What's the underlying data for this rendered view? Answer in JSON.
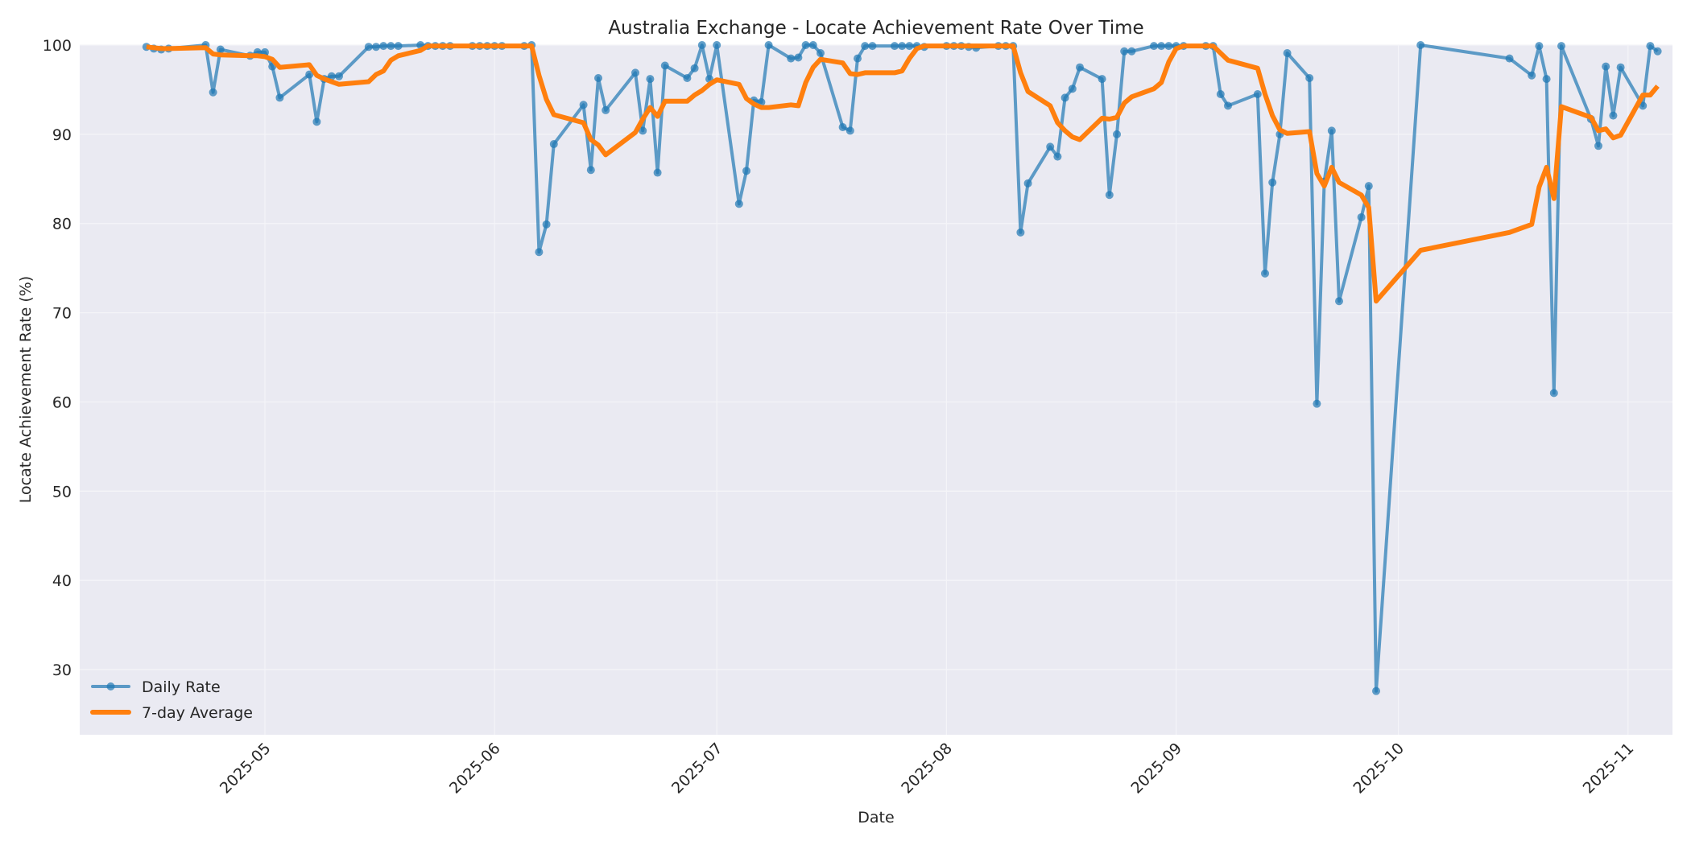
{
  "chart_data": {
    "type": "line",
    "title": "Australia Exchange - Locate Achievement Rate Over Time",
    "xlabel": "Date",
    "ylabel": "Locate Achievement Rate (%)",
    "ylim": [
      22.7,
      100
    ],
    "xlim": [
      "2025-04-06",
      "2025-11-07"
    ],
    "grid": true,
    "legend_position": "lower left",
    "yticks": [
      30,
      40,
      50,
      60,
      70,
      80,
      90,
      100
    ],
    "xticks": [
      "2025-05",
      "2025-06",
      "2025-07",
      "2025-08",
      "2025-09",
      "2025-10",
      "2025-11"
    ],
    "xtick_dates": [
      "2025-05-01",
      "2025-06-01",
      "2025-07-01",
      "2025-08-01",
      "2025-09-01",
      "2025-10-01",
      "2025-11-01"
    ],
    "series": [
      {
        "name": "Daily Rate",
        "color": "#1f77b4",
        "style": "line-marker",
        "points": [
          [
            "2025-04-15",
            99.8
          ],
          [
            "2025-04-16",
            99.6
          ],
          [
            "2025-04-17",
            99.5
          ],
          [
            "2025-04-18",
            99.6
          ],
          [
            "2025-04-23",
            100
          ],
          [
            "2025-04-24",
            94.7
          ],
          [
            "2025-04-25",
            99.5
          ],
          [
            "2025-04-29",
            98.8
          ],
          [
            "2025-04-30",
            99.2
          ],
          [
            "2025-05-01",
            99.2
          ],
          [
            "2025-05-02",
            97.6
          ],
          [
            "2025-05-03",
            94.1
          ],
          [
            "2025-05-07",
            96.7
          ],
          [
            "2025-05-08",
            91.4
          ],
          [
            "2025-05-09",
            96.2
          ],
          [
            "2025-05-10",
            96.5
          ],
          [
            "2025-05-11",
            96.5
          ],
          [
            "2025-05-15",
            99.8
          ],
          [
            "2025-05-16",
            99.8
          ],
          [
            "2025-05-17",
            99.9
          ],
          [
            "2025-05-18",
            99.9
          ],
          [
            "2025-05-19",
            99.9
          ],
          [
            "2025-05-22",
            100
          ],
          [
            "2025-05-23",
            99.9
          ],
          [
            "2025-05-24",
            99.9
          ],
          [
            "2025-05-25",
            99.9
          ],
          [
            "2025-05-26",
            99.9
          ],
          [
            "2025-05-29",
            99.9
          ],
          [
            "2025-05-30",
            99.9
          ],
          [
            "2025-05-31",
            99.9
          ],
          [
            "2025-06-01",
            99.9
          ],
          [
            "2025-06-02",
            99.9
          ],
          [
            "2025-06-05",
            99.9
          ],
          [
            "2025-06-06",
            100
          ],
          [
            "2025-06-07",
            76.8
          ],
          [
            "2025-06-08",
            79.9
          ],
          [
            "2025-06-09",
            88.9
          ],
          [
            "2025-06-13",
            93.3
          ],
          [
            "2025-06-14",
            86.0
          ],
          [
            "2025-06-15",
            96.3
          ],
          [
            "2025-06-16",
            92.7
          ],
          [
            "2025-06-20",
            96.9
          ],
          [
            "2025-06-21",
            90.4
          ],
          [
            "2025-06-22",
            96.2
          ],
          [
            "2025-06-23",
            85.7
          ],
          [
            "2025-06-24",
            97.7
          ],
          [
            "2025-06-27",
            96.3
          ],
          [
            "2025-06-28",
            97.4
          ],
          [
            "2025-06-29",
            100
          ],
          [
            "2025-06-30",
            96.2
          ],
          [
            "2025-07-01",
            100
          ],
          [
            "2025-07-04",
            82.2
          ],
          [
            "2025-07-05",
            85.9
          ],
          [
            "2025-07-06",
            93.8
          ],
          [
            "2025-07-07",
            93.6
          ],
          [
            "2025-07-08",
            100
          ],
          [
            "2025-07-11",
            98.5
          ],
          [
            "2025-07-12",
            98.6
          ],
          [
            "2025-07-13",
            100
          ],
          [
            "2025-07-14",
            100
          ],
          [
            "2025-07-15",
            99.1
          ],
          [
            "2025-07-18",
            90.8
          ],
          [
            "2025-07-19",
            90.4
          ],
          [
            "2025-07-20",
            98.5
          ],
          [
            "2025-07-21",
            99.9
          ],
          [
            "2025-07-22",
            99.9
          ],
          [
            "2025-07-25",
            99.9
          ],
          [
            "2025-07-26",
            99.9
          ],
          [
            "2025-07-27",
            99.9
          ],
          [
            "2025-07-28",
            99.9
          ],
          [
            "2025-07-29",
            99.8
          ],
          [
            "2025-08-01",
            99.9
          ],
          [
            "2025-08-02",
            99.9
          ],
          [
            "2025-08-03",
            99.9
          ],
          [
            "2025-08-04",
            99.8
          ],
          [
            "2025-08-05",
            99.7
          ],
          [
            "2025-08-08",
            99.9
          ],
          [
            "2025-08-09",
            99.9
          ],
          [
            "2025-08-10",
            99.9
          ],
          [
            "2025-08-11",
            79.0
          ],
          [
            "2025-08-12",
            84.5
          ],
          [
            "2025-08-15",
            88.6
          ],
          [
            "2025-08-16",
            87.5
          ],
          [
            "2025-08-17",
            94.1
          ],
          [
            "2025-08-18",
            95.1
          ],
          [
            "2025-08-19",
            97.5
          ],
          [
            "2025-08-22",
            96.2
          ],
          [
            "2025-08-23",
            83.2
          ],
          [
            "2025-08-24",
            90.0
          ],
          [
            "2025-08-25",
            99.3
          ],
          [
            "2025-08-26",
            99.3
          ],
          [
            "2025-08-29",
            99.9
          ],
          [
            "2025-08-30",
            99.9
          ],
          [
            "2025-08-31",
            99.9
          ],
          [
            "2025-09-01",
            99.9
          ],
          [
            "2025-09-02",
            99.9
          ],
          [
            "2025-09-05",
            99.9
          ],
          [
            "2025-09-06",
            99.9
          ],
          [
            "2025-09-07",
            94.5
          ],
          [
            "2025-09-08",
            93.2
          ],
          [
            "2025-09-12",
            94.5
          ],
          [
            "2025-09-13",
            74.4
          ],
          [
            "2025-09-14",
            84.6
          ],
          [
            "2025-09-15",
            90.0
          ],
          [
            "2025-09-16",
            99.1
          ],
          [
            "2025-09-19",
            96.3
          ],
          [
            "2025-09-20",
            59.8
          ],
          [
            "2025-09-21",
            84.7
          ],
          [
            "2025-09-22",
            90.4
          ],
          [
            "2025-09-23",
            71.3
          ],
          [
            "2025-09-26",
            80.7
          ],
          [
            "2025-09-27",
            84.2
          ],
          [
            "2025-09-28",
            27.6
          ],
          [
            "2025-10-04",
            100
          ],
          [
            "2025-10-16",
            98.5
          ],
          [
            "2025-10-19",
            96.6
          ],
          [
            "2025-10-20",
            99.9
          ],
          [
            "2025-10-21",
            96.2
          ],
          [
            "2025-10-22",
            61.0
          ],
          [
            "2025-10-23",
            99.9
          ],
          [
            "2025-10-27",
            91.7
          ],
          [
            "2025-10-28",
            88.7
          ],
          [
            "2025-10-29",
            97.6
          ],
          [
            "2025-10-30",
            92.1
          ],
          [
            "2025-10-31",
            97.5
          ],
          [
            "2025-11-03",
            93.2
          ],
          [
            "2025-11-04",
            99.9
          ],
          [
            "2025-11-05",
            99.3
          ]
        ]
      },
      {
        "name": "7-day Average",
        "color": "#ff7f0e",
        "style": "line",
        "points": [
          [
            "2025-04-15",
            99.8
          ],
          [
            "2025-04-16",
            99.7
          ],
          [
            "2025-04-17",
            99.6
          ],
          [
            "2025-04-18",
            99.6
          ],
          [
            "2025-04-23",
            99.7
          ],
          [
            "2025-04-24",
            99.0
          ],
          [
            "2025-04-25",
            98.9
          ],
          [
            "2025-04-29",
            98.8
          ],
          [
            "2025-04-30",
            98.8
          ],
          [
            "2025-05-01",
            98.7
          ],
          [
            "2025-05-02",
            98.4
          ],
          [
            "2025-05-03",
            97.5
          ],
          [
            "2025-05-07",
            97.8
          ],
          [
            "2025-05-08",
            96.6
          ],
          [
            "2025-05-09",
            96.2
          ],
          [
            "2025-05-10",
            95.9
          ],
          [
            "2025-05-11",
            95.6
          ],
          [
            "2025-05-15",
            95.9
          ],
          [
            "2025-05-16",
            96.7
          ],
          [
            "2025-05-17",
            97.1
          ],
          [
            "2025-05-18",
            98.3
          ],
          [
            "2025-05-19",
            98.8
          ],
          [
            "2025-05-22",
            99.4
          ],
          [
            "2025-05-23",
            99.9
          ],
          [
            "2025-05-24",
            99.9
          ],
          [
            "2025-05-25",
            99.9
          ],
          [
            "2025-05-26",
            99.9
          ],
          [
            "2025-05-29",
            99.9
          ],
          [
            "2025-05-30",
            99.9
          ],
          [
            "2025-05-31",
            99.9
          ],
          [
            "2025-06-01",
            99.9
          ],
          [
            "2025-06-02",
            99.9
          ],
          [
            "2025-06-05",
            99.9
          ],
          [
            "2025-06-06",
            99.9
          ],
          [
            "2025-06-07",
            96.6
          ],
          [
            "2025-06-08",
            93.9
          ],
          [
            "2025-06-09",
            92.2
          ],
          [
            "2025-06-13",
            91.3
          ],
          [
            "2025-06-14",
            89.4
          ],
          [
            "2025-06-15",
            88.8
          ],
          [
            "2025-06-16",
            87.7
          ],
          [
            "2025-06-20",
            90.2
          ],
          [
            "2025-06-21",
            91.7
          ],
          [
            "2025-06-22",
            93.0
          ],
          [
            "2025-06-23",
            92.0
          ],
          [
            "2025-06-24",
            93.7
          ],
          [
            "2025-06-27",
            93.7
          ],
          [
            "2025-06-28",
            94.4
          ],
          [
            "2025-06-29",
            94.9
          ],
          [
            "2025-06-30",
            95.6
          ],
          [
            "2025-07-01",
            96.1
          ],
          [
            "2025-07-04",
            95.6
          ],
          [
            "2025-07-05",
            94.0
          ],
          [
            "2025-07-06",
            93.4
          ],
          [
            "2025-07-07",
            93.0
          ],
          [
            "2025-07-08",
            93.0
          ],
          [
            "2025-07-11",
            93.3
          ],
          [
            "2025-07-12",
            93.2
          ],
          [
            "2025-07-13",
            95.8
          ],
          [
            "2025-07-14",
            97.5
          ],
          [
            "2025-07-15",
            98.4
          ],
          [
            "2025-07-18",
            98.0
          ],
          [
            "2025-07-19",
            96.8
          ],
          [
            "2025-07-20",
            96.7
          ],
          [
            "2025-07-21",
            96.9
          ],
          [
            "2025-07-22",
            96.9
          ],
          [
            "2025-07-25",
            96.9
          ],
          [
            "2025-07-26",
            97.1
          ],
          [
            "2025-07-27",
            98.5
          ],
          [
            "2025-07-28",
            99.6
          ],
          [
            "2025-07-29",
            99.9
          ],
          [
            "2025-08-01",
            99.9
          ],
          [
            "2025-08-02",
            99.9
          ],
          [
            "2025-08-03",
            99.9
          ],
          [
            "2025-08-04",
            99.9
          ],
          [
            "2025-08-05",
            99.9
          ],
          [
            "2025-08-08",
            99.9
          ],
          [
            "2025-08-09",
            99.9
          ],
          [
            "2025-08-10",
            99.9
          ],
          [
            "2025-08-11",
            96.9
          ],
          [
            "2025-08-12",
            94.8
          ],
          [
            "2025-08-15",
            93.2
          ],
          [
            "2025-08-16",
            91.3
          ],
          [
            "2025-08-17",
            90.4
          ],
          [
            "2025-08-18",
            89.7
          ],
          [
            "2025-08-19",
            89.4
          ],
          [
            "2025-08-22",
            91.8
          ],
          [
            "2025-08-23",
            91.7
          ],
          [
            "2025-08-24",
            91.9
          ],
          [
            "2025-08-25",
            93.5
          ],
          [
            "2025-08-26",
            94.2
          ],
          [
            "2025-08-29",
            95.1
          ],
          [
            "2025-08-30",
            95.8
          ],
          [
            "2025-08-31",
            98.1
          ],
          [
            "2025-09-01",
            99.6
          ],
          [
            "2025-09-02",
            99.9
          ],
          [
            "2025-09-05",
            99.9
          ],
          [
            "2025-09-06",
            99.9
          ],
          [
            "2025-09-07",
            99.1
          ],
          [
            "2025-09-08",
            98.3
          ],
          [
            "2025-09-12",
            97.4
          ],
          [
            "2025-09-13",
            94.5
          ],
          [
            "2025-09-14",
            92.1
          ],
          [
            "2025-09-15",
            90.5
          ],
          [
            "2025-09-16",
            90.1
          ],
          [
            "2025-09-19",
            90.3
          ],
          [
            "2025-09-20",
            85.6
          ],
          [
            "2025-09-21",
            84.2
          ],
          [
            "2025-09-22",
            86.3
          ],
          [
            "2025-09-23",
            84.6
          ],
          [
            "2025-09-26",
            83.2
          ],
          [
            "2025-09-27",
            81.8
          ],
          [
            "2025-09-28",
            71.3
          ],
          [
            "2025-10-04",
            77.0
          ],
          [
            "2025-10-16",
            79.0
          ],
          [
            "2025-10-19",
            79.9
          ],
          [
            "2025-10-20",
            84.1
          ],
          [
            "2025-10-21",
            86.3
          ],
          [
            "2025-10-22",
            82.8
          ],
          [
            "2025-10-23",
            93.1
          ],
          [
            "2025-10-27",
            91.9
          ],
          [
            "2025-10-28",
            90.4
          ],
          [
            "2025-10-29",
            90.6
          ],
          [
            "2025-10-30",
            89.6
          ],
          [
            "2025-10-31",
            89.9
          ],
          [
            "2025-11-03",
            94.4
          ],
          [
            "2025-11-04",
            94.4
          ],
          [
            "2025-11-05",
            95.4
          ]
        ]
      }
    ]
  },
  "legend": {
    "items": [
      {
        "label": "Daily Rate",
        "color": "#1f77b4"
      },
      {
        "label": "7-day Average",
        "color": "#ff7f0e"
      }
    ]
  },
  "style": {
    "plot_bg": "#eaeaf2",
    "grid_color": "#f4f4f8",
    "text_color": "#262626"
  }
}
